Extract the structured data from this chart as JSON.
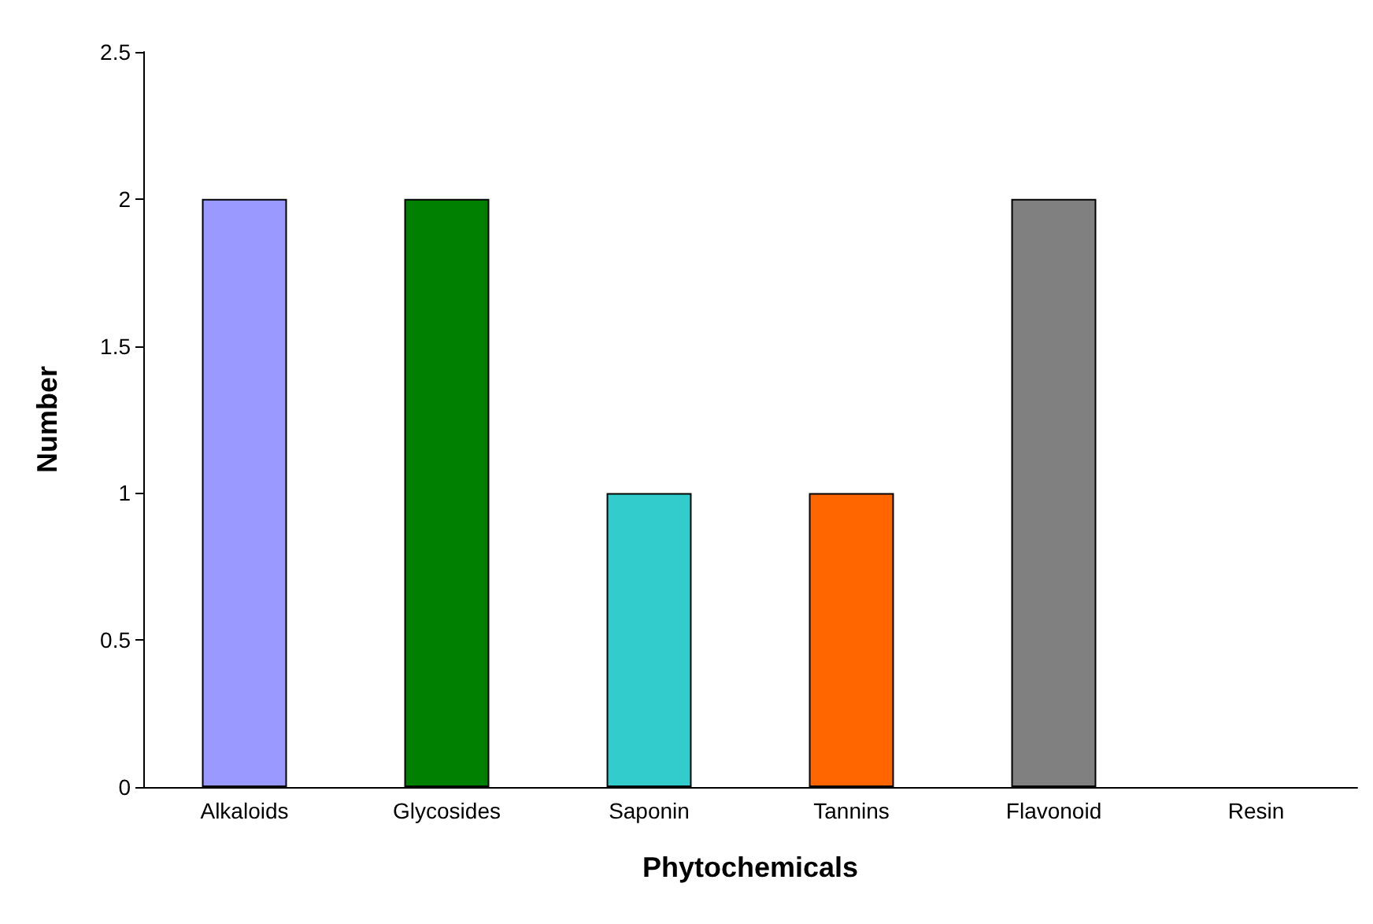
{
  "chart_data": {
    "type": "bar",
    "xlabel": "Phytochemicals",
    "ylabel": "Number",
    "categories": [
      "Alkaloids",
      "Glycosides",
      "Saponin",
      "Tannins",
      "Flavonoid",
      "Resin"
    ],
    "values": [
      2,
      2,
      1,
      1,
      2,
      0
    ],
    "colors": [
      "#9999ff",
      "#008000",
      "#33cccc",
      "#ff6600",
      "#808080",
      "#ffffff"
    ],
    "ylim": [
      0,
      2.5
    ],
    "yticks": [
      0,
      0.5,
      1,
      1.5,
      2,
      2.5
    ],
    "grid": false
  }
}
